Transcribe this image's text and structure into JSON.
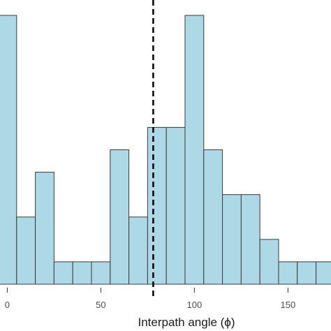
{
  "chart_data": {
    "type": "bar",
    "subtype": "histogram",
    "xlabel": "Interpath angle (ϕ)",
    "ylabel": "",
    "x_ticks": [
      0,
      50,
      100,
      150
    ],
    "xlim": [
      -5,
      173
    ],
    "ylim": [
      0,
      12
    ],
    "bin_width": 10,
    "bins": [
      {
        "start": -5,
        "end": 5,
        "count": 12
      },
      {
        "start": 5,
        "end": 15,
        "count": 3
      },
      {
        "start": 15,
        "end": 25,
        "count": 5
      },
      {
        "start": 25,
        "end": 35,
        "count": 1
      },
      {
        "start": 35,
        "end": 45,
        "count": 1
      },
      {
        "start": 45,
        "end": 55,
        "count": 1
      },
      {
        "start": 55,
        "end": 65,
        "count": 6
      },
      {
        "start": 65,
        "end": 75,
        "count": 3
      },
      {
        "start": 75,
        "end": 85,
        "count": 7
      },
      {
        "start": 85,
        "end": 95,
        "count": 7
      },
      {
        "start": 95,
        "end": 105,
        "count": 12
      },
      {
        "start": 105,
        "end": 115,
        "count": 6
      },
      {
        "start": 115,
        "end": 125,
        "count": 4
      },
      {
        "start": 125,
        "end": 135,
        "count": 4
      },
      {
        "start": 135,
        "end": 145,
        "count": 2
      },
      {
        "start": 145,
        "end": 155,
        "count": 1
      },
      {
        "start": 155,
        "end": 165,
        "count": 1
      },
      {
        "start": 165,
        "end": 175,
        "count": 1
      }
    ],
    "reference_line": {
      "x": 78,
      "style": "dashed",
      "color": "#000000"
    },
    "grid": false,
    "colors": {
      "bar_fill": "#add8e6",
      "bar_stroke": "#3a3a3a",
      "tick": "#333333"
    }
  }
}
